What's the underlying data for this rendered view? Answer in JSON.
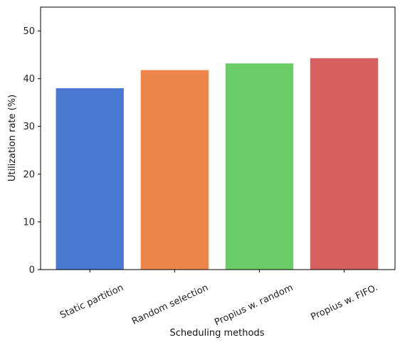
{
  "chart_data": {
    "type": "bar",
    "categories": [
      "Static partition",
      "Random selection",
      "Propius w. random",
      "Propius w. FIFO."
    ],
    "values": [
      38.0,
      41.8,
      43.2,
      44.3
    ],
    "colors": [
      "#4878d0",
      "#ee854a",
      "#6acc64",
      "#d65f5f"
    ],
    "title": "",
    "xlabel": "Scheduling methods",
    "ylabel": "Utilization rate (%)",
    "ylim": [
      0,
      55
    ],
    "yticks": [
      0,
      10,
      20,
      30,
      40,
      50
    ],
    "grid": false,
    "legend": "none"
  }
}
